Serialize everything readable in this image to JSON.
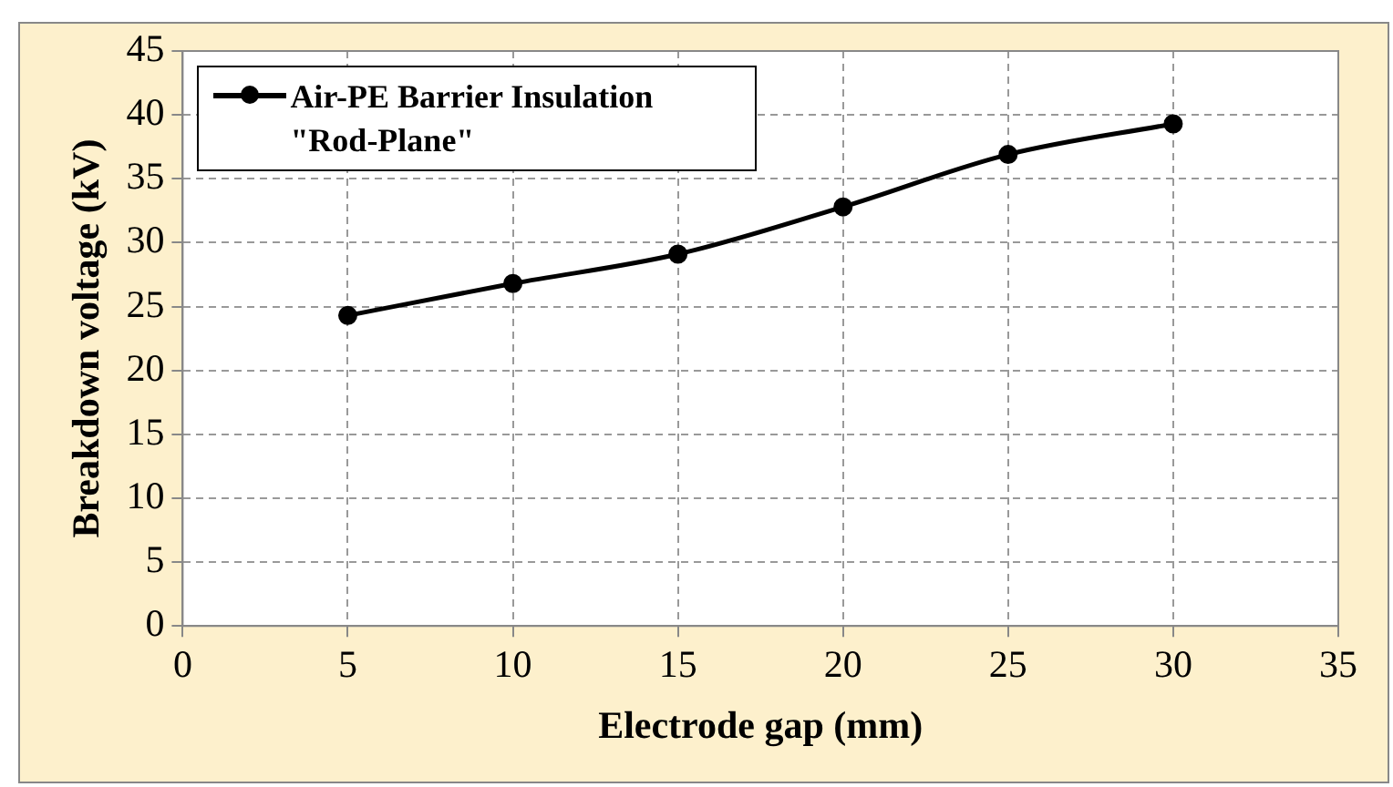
{
  "chart_data": {
    "type": "line",
    "xlabel": "Electrode gap (mm)",
    "ylabel": "Breakdown voltage (kV)",
    "x": [
      5,
      10,
      15,
      20,
      25,
      30
    ],
    "series": [
      {
        "name": "Air-PE Barrier Insulation \"Rod-Plane\"",
        "color": "#000000",
        "values": [
          24.3,
          26.8,
          29.1,
          32.8,
          36.9,
          39.3
        ]
      }
    ],
    "xlim": [
      0,
      35
    ],
    "xticks": [
      0,
      5,
      10,
      15,
      20,
      25,
      30,
      35
    ],
    "ylim": [
      0,
      45
    ],
    "yticks": [
      0,
      5,
      10,
      15,
      20,
      25,
      30,
      35,
      40,
      45
    ],
    "grid": true,
    "legend": "top left",
    "marker": "circle",
    "line_style": "solid"
  }
}
